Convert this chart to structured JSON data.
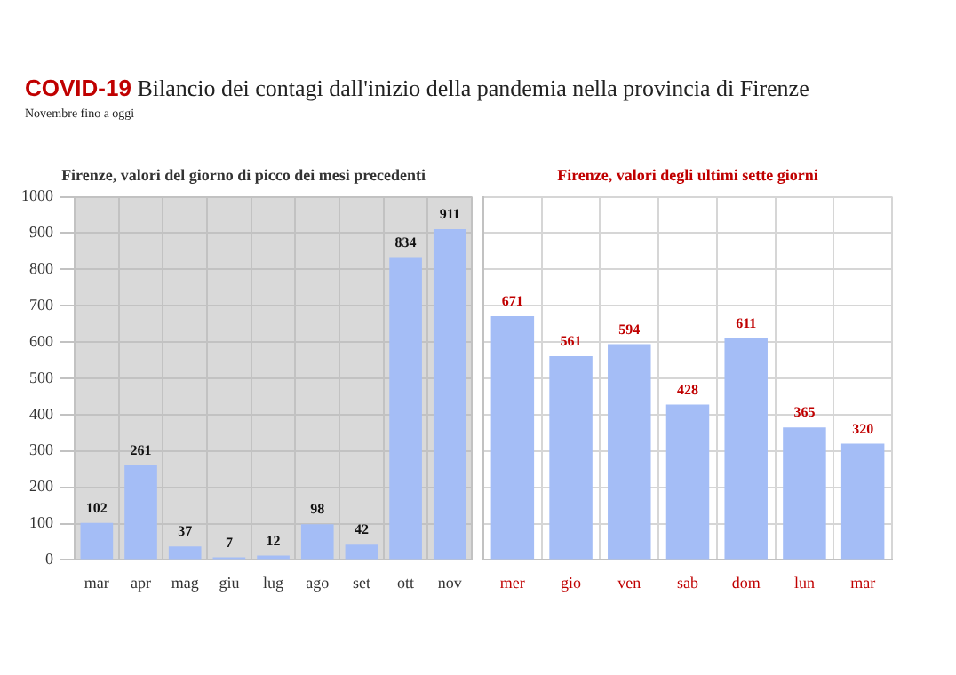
{
  "chart_data": [
    {
      "type": "other",
      "title": "COVID-19 Bilancio dei contagi dall'inizio della pandemia nella provincia di Firenze",
      "subtitle": "Novembre fino a oggi"
    },
    {
      "type": "bar",
      "title": "Firenze, valori del giorno di picco dei mesi precedenti",
      "categories": [
        "mar",
        "apr",
        "mag",
        "giu",
        "lug",
        "ago",
        "set",
        "ott",
        "nov"
      ],
      "values": [
        102,
        261,
        37,
        7,
        12,
        98,
        42,
        834,
        911
      ],
      "color": "#a4bdf6",
      "ylim": [
        0,
        1000
      ],
      "yticks": [
        0,
        100,
        200,
        300,
        400,
        500,
        600,
        700,
        800,
        900,
        1000
      ],
      "grid": true,
      "data_labels": true
    },
    {
      "type": "bar",
      "title": "Firenze, valori degli ultimi sette giorni",
      "categories": [
        "mer",
        "gio",
        "ven",
        "sab",
        "dom",
        "lun",
        "mar"
      ],
      "values": [
        671,
        561,
        594,
        428,
        611,
        365,
        320
      ],
      "color": "#a4bdf6",
      "ylim": [
        0,
        1000
      ],
      "yticks": [
        0,
        100,
        200,
        300,
        400,
        500,
        600,
        700,
        800,
        900,
        1000
      ],
      "grid": true,
      "tick_labels": "x",
      "data_labels": true
    }
  ]
}
